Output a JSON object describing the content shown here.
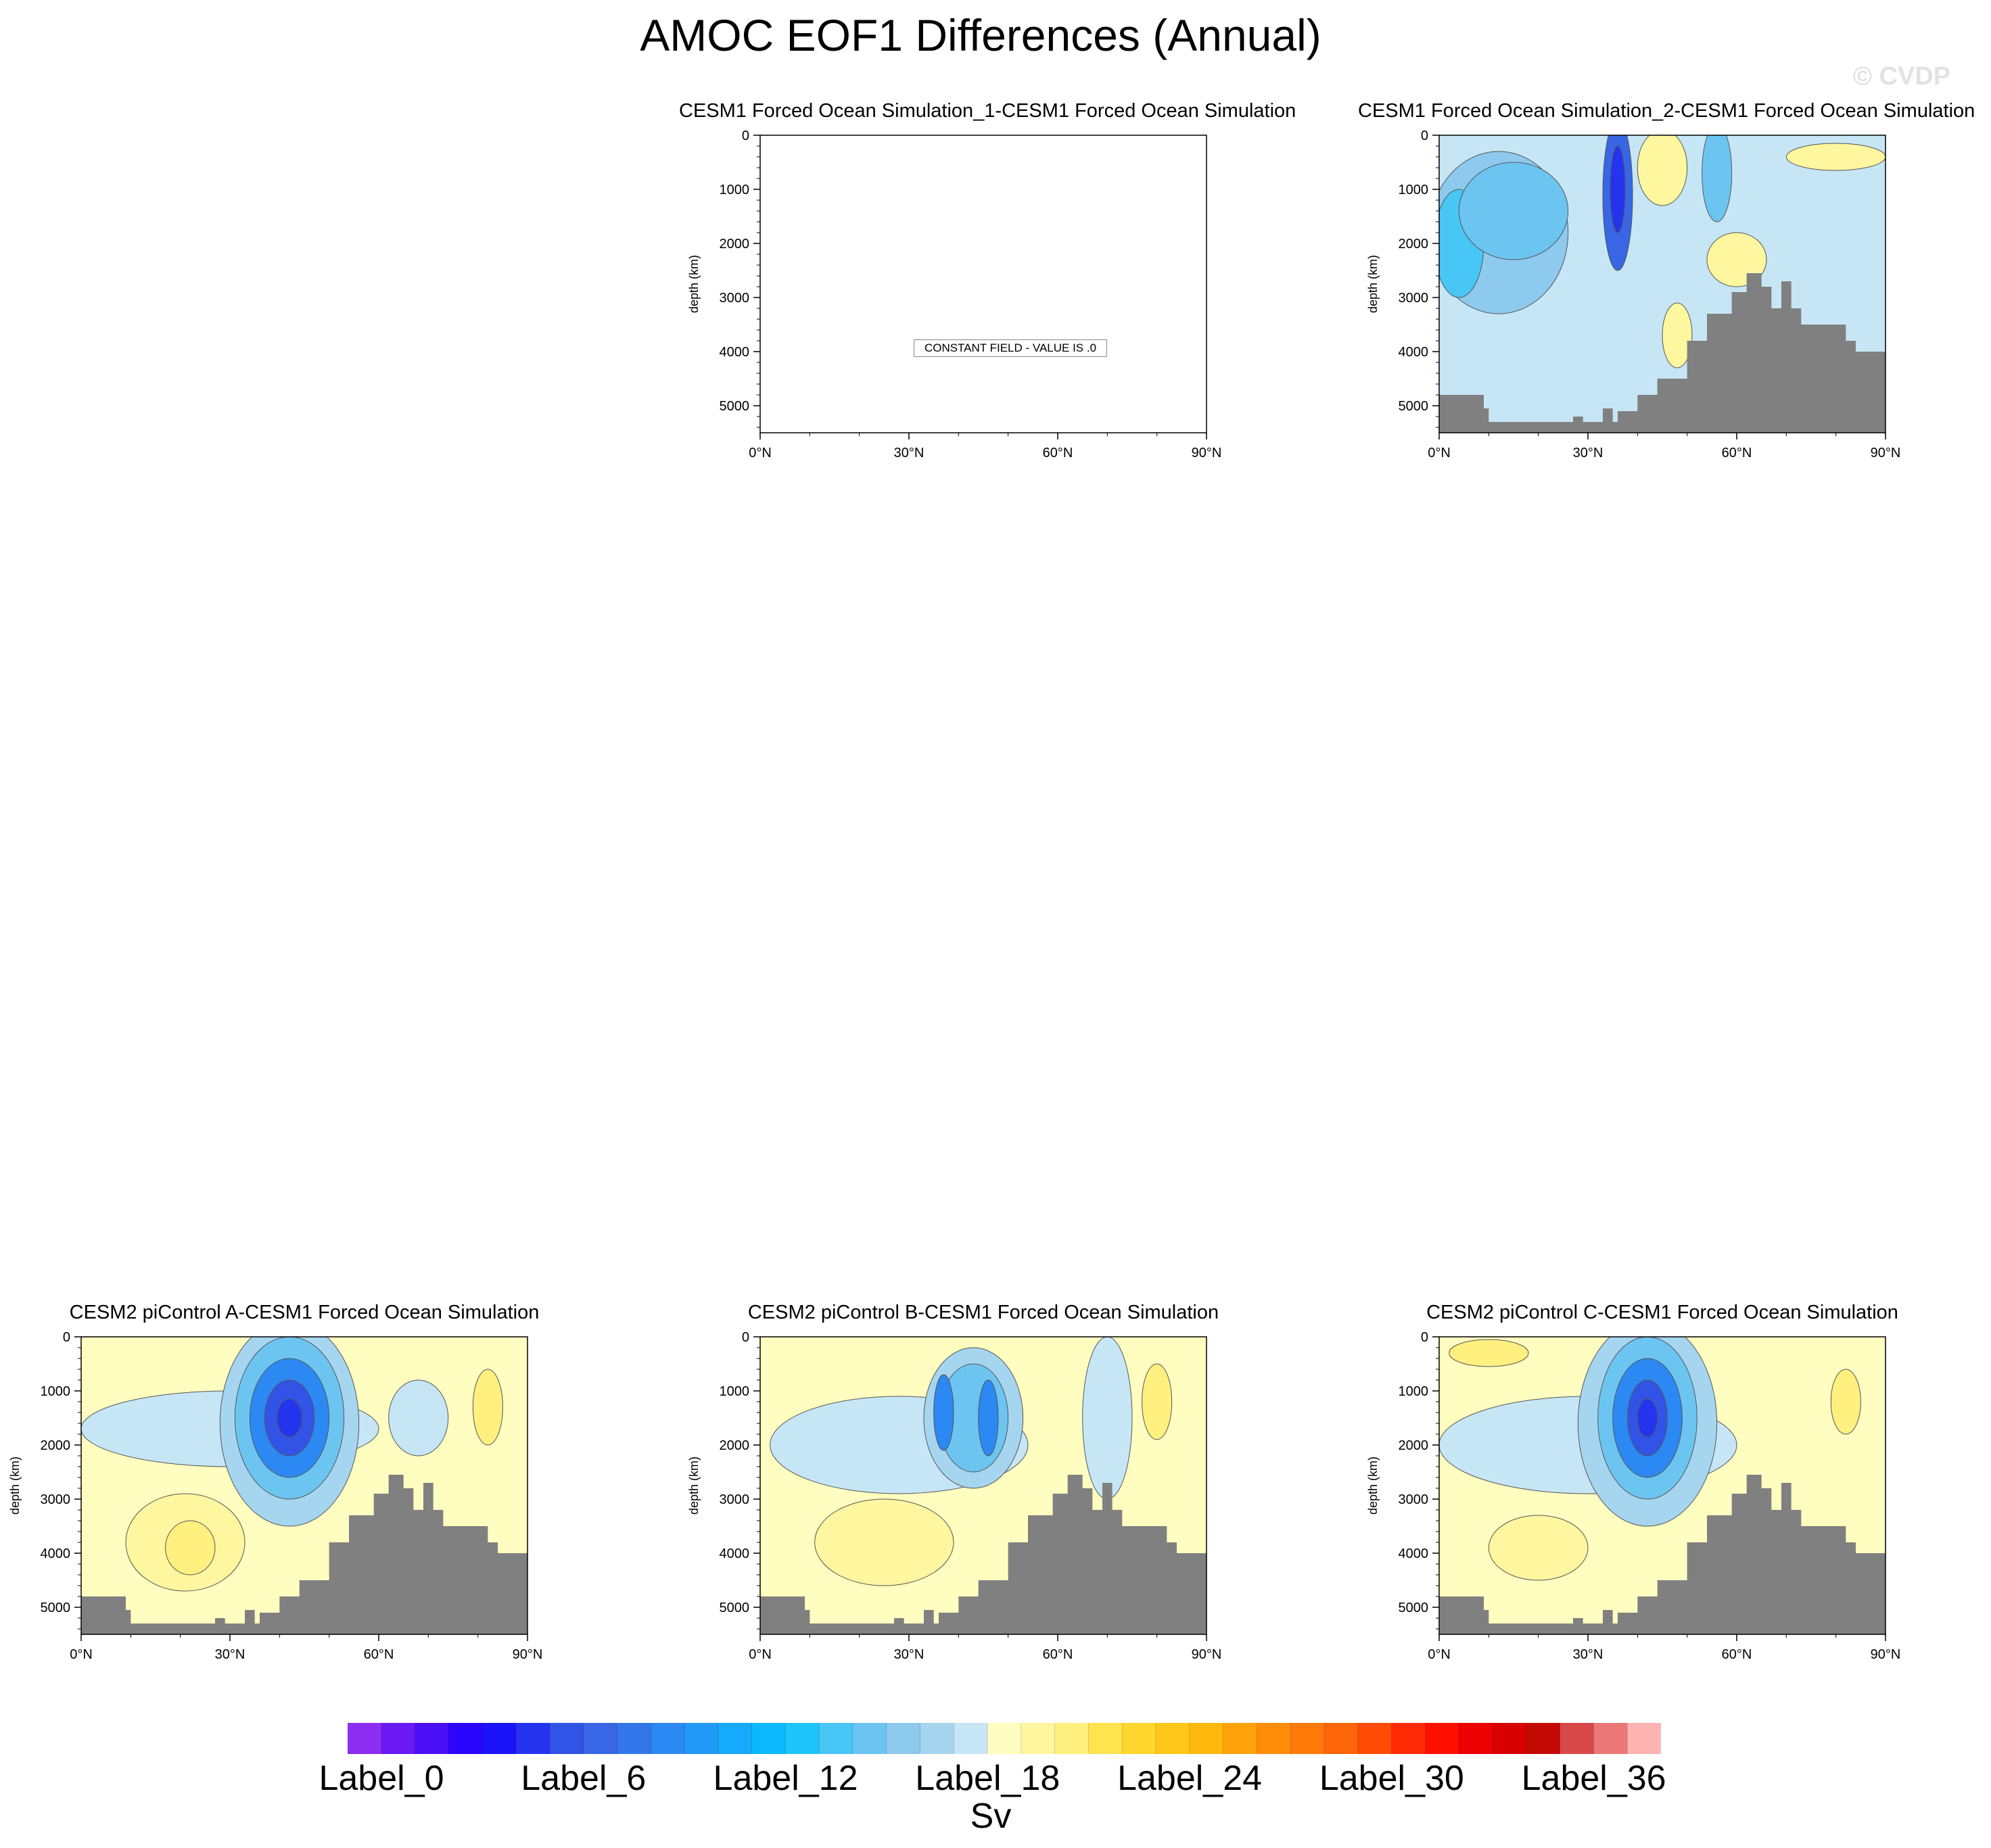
{
  "title": "AMOC EOF1 Differences (Annual)",
  "watermark": "© CVDP",
  "units": "Sv",
  "colorbar": {
    "labels": [
      "Label_0",
      "Label_6",
      "Label_12",
      "Label_18",
      "Label_24",
      "Label_30",
      "Label_36"
    ],
    "colors": [
      "#8c2eef",
      "#6a19f4",
      "#4a0ff6",
      "#2b05fb",
      "#1c14f8",
      "#2434ee",
      "#3153e6",
      "#3866e4",
      "#3376ea",
      "#2c88f2",
      "#2099f7",
      "#15aafb",
      "#0cb8fe",
      "#1ec4fc",
      "#48c6f6",
      "#6cc5f1",
      "#8ec9ee",
      "#a6d5f0",
      "#c6e6f6",
      "#fffdc0",
      "#fff6a0",
      "#fff080",
      "#ffe34f",
      "#ffd62e",
      "#ffc71a",
      "#ffb80e",
      "#ffa309",
      "#ff8d08",
      "#ff7a08",
      "#ff6509",
      "#ff4b06",
      "#ff2a03",
      "#ff0f00",
      "#ec0000",
      "#d80000",
      "#c40804",
      "#d94848",
      "#ec7878",
      "#ffb4b4"
    ]
  },
  "chart_data": [
    {
      "type": "contour",
      "title": "CESM1 Forced Ocean Simulation_1-CESM1 Forced Ocean Simulation",
      "ylabel": "depth (km)",
      "x_ticks": [
        "0°N",
        "30°N",
        "60°N",
        "90°N"
      ],
      "y_ticks": [
        "0",
        "1000",
        "2000",
        "3000",
        "4000",
        "5000"
      ],
      "xlim": [
        0,
        90
      ],
      "ylim": [
        5500,
        0
      ],
      "message": "CONSTANT FIELD - VALUE IS .0",
      "constant": true
    },
    {
      "type": "contour",
      "title": "CESM1 Forced Ocean Simulation_2-CESM1 Forced Ocean Simulation",
      "ylabel": "depth (km)",
      "x_ticks": [
        "0°N",
        "30°N",
        "60°N",
        "90°N"
      ],
      "y_ticks": [
        "0",
        "1000",
        "2000",
        "3000",
        "4000",
        "5000"
      ],
      "xlim": [
        0,
        90
      ],
      "ylim": [
        5500,
        0
      ],
      "background": "#c6e6f6",
      "blobs": [
        {
          "x": 12,
          "y": 1800,
          "rx": 14,
          "ry": 1500,
          "color": "#8ec9ee"
        },
        {
          "x": 4,
          "y": 2000,
          "rx": 5,
          "ry": 1000,
          "color": "#48c6f6"
        },
        {
          "x": 15,
          "y": 1400,
          "rx": 11,
          "ry": 900,
          "color": "#6cc5f1"
        },
        {
          "x": 36,
          "y": 1100,
          "rx": 3,
          "ry": 1400,
          "color": "#3866e4"
        },
        {
          "x": 36,
          "y": 1000,
          "rx": 1.5,
          "ry": 800,
          "color": "#2434ee"
        },
        {
          "x": 45,
          "y": 600,
          "rx": 5,
          "ry": 700,
          "color": "#fff6a0"
        },
        {
          "x": 56,
          "y": 700,
          "rx": 3,
          "ry": 900,
          "color": "#6cc5f1"
        },
        {
          "x": 60,
          "y": 2300,
          "rx": 6,
          "ry": 500,
          "color": "#fff6a0"
        },
        {
          "x": 80,
          "y": 400,
          "rx": 10,
          "ry": 250,
          "color": "#fff6a0"
        },
        {
          "x": 48,
          "y": 3700,
          "rx": 3,
          "ry": 600,
          "color": "#fff6a0"
        }
      ],
      "bathymetry": true
    },
    {
      "type": "contour",
      "title": "CESM2 piControl A-CESM1 Forced Ocean Simulation",
      "ylabel": "depth (km)",
      "x_ticks": [
        "0°N",
        "30°N",
        "60°N",
        "90°N"
      ],
      "y_ticks": [
        "0",
        "1000",
        "2000",
        "3000",
        "4000",
        "5000"
      ],
      "xlim": [
        0,
        90
      ],
      "ylim": [
        5500,
        0
      ],
      "background": "#fffdc0",
      "blobs": [
        {
          "x": 30,
          "y": 1700,
          "rx": 30,
          "ry": 700,
          "color": "#c6e6f6"
        },
        {
          "x": 21,
          "y": 3800,
          "rx": 12,
          "ry": 900,
          "color": "#fff6a0"
        },
        {
          "x": 22,
          "y": 3900,
          "rx": 5,
          "ry": 500,
          "color": "#fff080"
        },
        {
          "x": 42,
          "y": 1600,
          "rx": 14,
          "ry": 1900,
          "color": "#a6d5f0"
        },
        {
          "x": 42,
          "y": 1500,
          "rx": 11,
          "ry": 1500,
          "color": "#6cc5f1"
        },
        {
          "x": 42,
          "y": 1500,
          "rx": 8,
          "ry": 1100,
          "color": "#2c88f2"
        },
        {
          "x": 42,
          "y": 1500,
          "rx": 5,
          "ry": 700,
          "color": "#3153e6"
        },
        {
          "x": 42,
          "y": 1500,
          "rx": 2.5,
          "ry": 350,
          "color": "#2434ee"
        },
        {
          "x": 82,
          "y": 1300,
          "rx": 3,
          "ry": 700,
          "color": "#fff080"
        },
        {
          "x": 68,
          "y": 1500,
          "rx": 6,
          "ry": 700,
          "color": "#c6e6f6"
        }
      ],
      "bathymetry": true
    },
    {
      "type": "contour",
      "title": "CESM2 piControl B-CESM1 Forced Ocean Simulation",
      "ylabel": "depth (km)",
      "x_ticks": [
        "0°N",
        "30°N",
        "60°N",
        "90°N"
      ],
      "y_ticks": [
        "0",
        "1000",
        "2000",
        "3000",
        "4000",
        "5000"
      ],
      "xlim": [
        0,
        90
      ],
      "ylim": [
        5500,
        0
      ],
      "background": "#fffdc0",
      "blobs": [
        {
          "x": 28,
          "y": 2000,
          "rx": 26,
          "ry": 900,
          "color": "#c6e6f6"
        },
        {
          "x": 25,
          "y": 3800,
          "rx": 14,
          "ry": 800,
          "color": "#fff6a0"
        },
        {
          "x": 43,
          "y": 1500,
          "rx": 10,
          "ry": 1300,
          "color": "#a6d5f0"
        },
        {
          "x": 43,
          "y": 1500,
          "rx": 7,
          "ry": 1000,
          "color": "#6cc5f1"
        },
        {
          "x": 37,
          "y": 1400,
          "rx": 2,
          "ry": 700,
          "color": "#2c88f2"
        },
        {
          "x": 46,
          "y": 1500,
          "rx": 2,
          "ry": 700,
          "color": "#2c88f2"
        },
        {
          "x": 80,
          "y": 1200,
          "rx": 3,
          "ry": 700,
          "color": "#fff080"
        },
        {
          "x": 70,
          "y": 1500,
          "rx": 5,
          "ry": 1500,
          "color": "#c6e6f6"
        }
      ],
      "bathymetry": true
    },
    {
      "type": "contour",
      "title": "CESM2 piControl C-CESM1 Forced Ocean Simulation",
      "ylabel": "depth (km)",
      "x_ticks": [
        "0°N",
        "30°N",
        "60°N",
        "90°N"
      ],
      "y_ticks": [
        "0",
        "1000",
        "2000",
        "3000",
        "4000",
        "5000"
      ],
      "xlim": [
        0,
        90
      ],
      "ylim": [
        5500,
        0
      ],
      "background": "#fffdc0",
      "blobs": [
        {
          "x": 30,
          "y": 2000,
          "rx": 30,
          "ry": 900,
          "color": "#c6e6f6"
        },
        {
          "x": 20,
          "y": 3900,
          "rx": 10,
          "ry": 600,
          "color": "#fff6a0"
        },
        {
          "x": 42,
          "y": 1600,
          "rx": 14,
          "ry": 1900,
          "color": "#a6d5f0"
        },
        {
          "x": 42,
          "y": 1500,
          "rx": 10,
          "ry": 1500,
          "color": "#6cc5f1"
        },
        {
          "x": 42,
          "y": 1500,
          "rx": 7,
          "ry": 1100,
          "color": "#2c88f2"
        },
        {
          "x": 42,
          "y": 1500,
          "rx": 4,
          "ry": 700,
          "color": "#3153e6"
        },
        {
          "x": 42,
          "y": 1500,
          "rx": 2,
          "ry": 350,
          "color": "#2434ee"
        },
        {
          "x": 10,
          "y": 300,
          "rx": 8,
          "ry": 250,
          "color": "#fff080"
        },
        {
          "x": 82,
          "y": 1200,
          "rx": 3,
          "ry": 600,
          "color": "#fff080"
        }
      ],
      "bathymetry": true
    }
  ],
  "bathymetry_profile": [
    [
      0,
      4800
    ],
    [
      9,
      4800
    ],
    [
      9,
      5050
    ],
    [
      10,
      5050
    ],
    [
      10,
      5300
    ],
    [
      27,
      5300
    ],
    [
      27,
      5200
    ],
    [
      29,
      5200
    ],
    [
      29,
      5300
    ],
    [
      33,
      5300
    ],
    [
      33,
      5050
    ],
    [
      35,
      5050
    ],
    [
      35,
      5300
    ],
    [
      36,
      5300
    ],
    [
      36,
      5100
    ],
    [
      40,
      5100
    ],
    [
      40,
      4800
    ],
    [
      44,
      4800
    ],
    [
      44,
      4500
    ],
    [
      50,
      4500
    ],
    [
      50,
      3800
    ],
    [
      54,
      3800
    ],
    [
      54,
      3300
    ],
    [
      59,
      3300
    ],
    [
      59,
      2900
    ],
    [
      62,
      2900
    ],
    [
      62,
      2550
    ],
    [
      65,
      2550
    ],
    [
      65,
      2800
    ],
    [
      67,
      2800
    ],
    [
      67,
      3200
    ],
    [
      69,
      3200
    ],
    [
      69,
      2700
    ],
    [
      71,
      2700
    ],
    [
      71,
      3200
    ],
    [
      73,
      3200
    ],
    [
      73,
      3500
    ],
    [
      82,
      3500
    ],
    [
      82,
      3800
    ],
    [
      84,
      3800
    ],
    [
      84,
      4000
    ],
    [
      90,
      4000
    ]
  ]
}
